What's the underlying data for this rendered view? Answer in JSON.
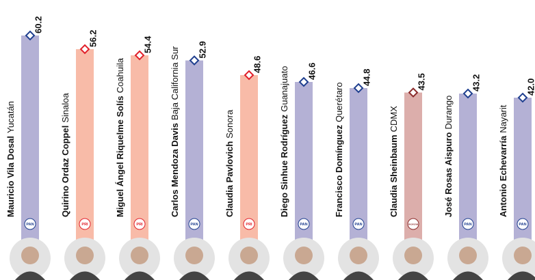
{
  "chart_data": {
    "type": "bar",
    "categories": [
      "Mauricio Vila Dosal",
      "Quirino Ordaz Coppel",
      "Miguel Ángel Riquelme Solís",
      "Carlos Mendoza Davis",
      "Claudia Pavlovich",
      "Diego Sinhue Rodríguez",
      "Francisco Domínguez",
      "Claudia Sheinbaum",
      "José Rosas Aispuro",
      "Antonio Echevarría"
    ],
    "states": [
      "Yucatán",
      "Sinaloa",
      "Coahuila",
      "Baja California Sur",
      "Sonora",
      "Guanajuato",
      "Querétaro",
      "CDMX",
      "Durango",
      "Nayarit"
    ],
    "parties": [
      "PAN",
      "PRI",
      "PRI",
      "PAN",
      "PRI",
      "PAN",
      "PAN",
      "morena",
      "PAN",
      "PAN"
    ],
    "values": [
      60.2,
      56.2,
      54.4,
      52.9,
      48.6,
      46.6,
      44.8,
      43.5,
      43.2,
      42.0
    ],
    "value_labels": [
      "60.2",
      "56.2",
      "54.4",
      "52.9",
      "48.6",
      "46.6",
      "44.8",
      "43.5",
      "43.2",
      "42.0"
    ],
    "colors": [
      "#b4b1d5",
      "#f8bba8",
      "#f8bba8",
      "#b4b1d5",
      "#f8bba8",
      "#b4b1d5",
      "#b4b1d5",
      "#dcaeab",
      "#b4b1d5",
      "#b4b1d5"
    ],
    "marker_colors": [
      "#1f3f8f",
      "#e1202a",
      "#e1202a",
      "#1f3f8f",
      "#e1202a",
      "#1f3f8f",
      "#1f3f8f",
      "#8b2b2b",
      "#1f3f8f",
      "#1f3f8f"
    ],
    "ylim": [
      0,
      70
    ]
  }
}
